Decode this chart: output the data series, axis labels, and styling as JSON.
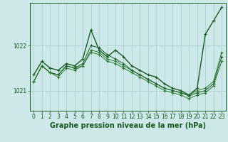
{
  "title": "Graphe pression niveau de la mer (hPa)",
  "bg_color": "#cce8e8",
  "plot_bg_color": "#cce8e8",
  "grid_color": "#a8cccc",
  "line_colors": [
    "#1a5a20",
    "#2a7a30",
    "#1a5a20",
    "#2a7a30"
  ],
  "xlim": [
    -0.5,
    23.5
  ],
  "ylim": [
    1020.55,
    1022.95
  ],
  "yticks": [
    1021,
    1022
  ],
  "xticks": [
    0,
    1,
    2,
    3,
    4,
    5,
    6,
    7,
    8,
    9,
    10,
    11,
    12,
    13,
    14,
    15,
    16,
    17,
    18,
    19,
    20,
    21,
    22,
    23
  ],
  "series": [
    [
      1021.35,
      1021.65,
      1021.5,
      1021.45,
      1021.6,
      1021.55,
      1021.7,
      1022.35,
      1021.9,
      1021.75,
      1021.9,
      1021.75,
      1021.55,
      1021.45,
      1021.35,
      1021.3,
      1021.15,
      1021.05,
      1021.0,
      1020.9,
      1021.05,
      1022.25,
      1022.55,
      1022.85
    ],
    [
      1021.2,
      1021.55,
      1021.4,
      1021.35,
      1021.55,
      1021.5,
      1021.55,
      1021.9,
      1021.85,
      1021.7,
      1021.65,
      1021.55,
      1021.45,
      1021.35,
      1021.25,
      1021.15,
      1021.05,
      1021.0,
      1020.95,
      1020.9,
      1021.0,
      1021.05,
      1021.2,
      1021.85
    ],
    [
      1021.2,
      1021.55,
      1021.4,
      1021.35,
      1021.55,
      1021.5,
      1021.6,
      1022.0,
      1021.95,
      1021.8,
      1021.7,
      1021.6,
      1021.45,
      1021.35,
      1021.25,
      1021.15,
      1021.05,
      1021.0,
      1020.95,
      1020.88,
      1020.95,
      1021.0,
      1021.15,
      1021.75
    ],
    [
      1021.2,
      1021.55,
      1021.4,
      1021.3,
      1021.5,
      1021.45,
      1021.55,
      1021.85,
      1021.8,
      1021.65,
      1021.6,
      1021.5,
      1021.4,
      1021.3,
      1021.2,
      1021.1,
      1021.0,
      1020.95,
      1020.9,
      1020.82,
      1020.9,
      1020.95,
      1021.1,
      1021.65
    ]
  ],
  "lws": [
    1.0,
    0.7,
    0.7,
    0.7
  ],
  "title_fontsize": 7,
  "tick_fontsize": 5.5
}
